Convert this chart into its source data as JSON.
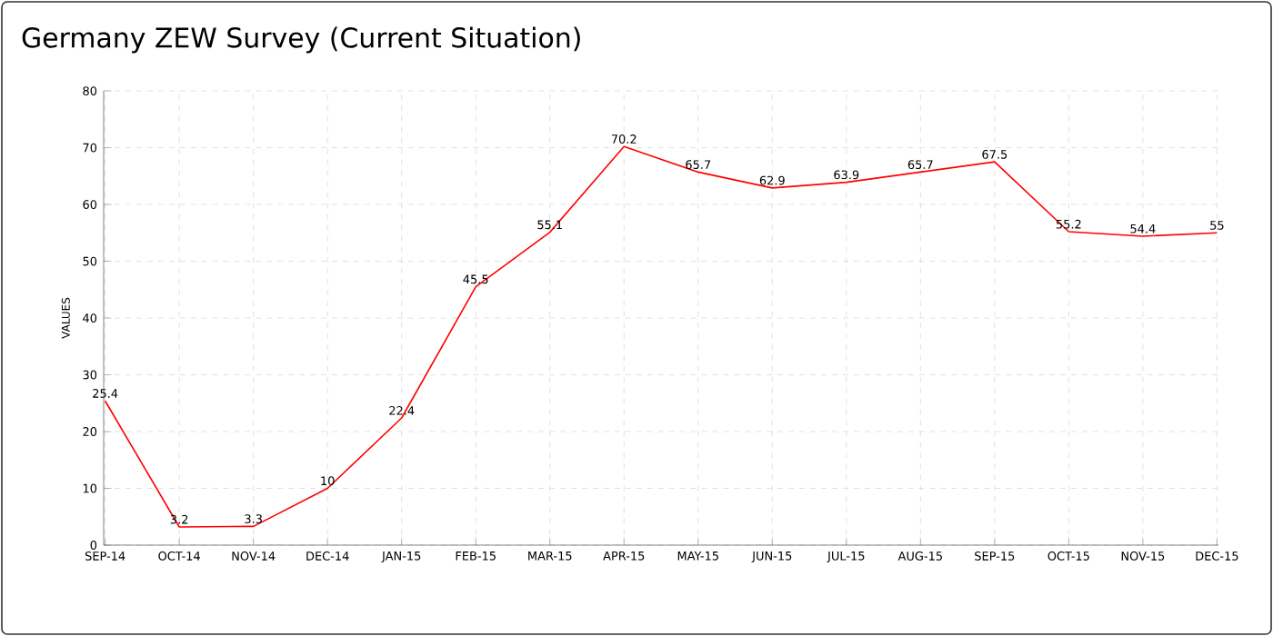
{
  "chart_data": {
    "type": "line",
    "title": "Germany ZEW Survey (Current Situation)",
    "ylabel": "VALUES",
    "categories": [
      "SEP-14",
      "OCT-14",
      "NOV-14",
      "DEC-14",
      "JAN-15",
      "FEB-15",
      "MAR-15",
      "APR-15",
      "MAY-15",
      "JUN-15",
      "JUL-15",
      "AUG-15",
      "SEP-15",
      "OCT-15",
      "NOV-15",
      "DEC-15"
    ],
    "values": [
      25.4,
      3.2,
      3.3,
      10,
      22.4,
      45.5,
      55.1,
      70.2,
      65.7,
      62.9,
      63.9,
      65.7,
      67.5,
      55.2,
      54.4,
      55
    ],
    "color": "#ff0000",
    "ylim": [
      0,
      80
    ],
    "yticks": [
      0,
      10,
      20,
      30,
      40,
      50,
      60,
      70,
      80
    ],
    "grid": true,
    "marker": "none",
    "data_labels": true
  }
}
